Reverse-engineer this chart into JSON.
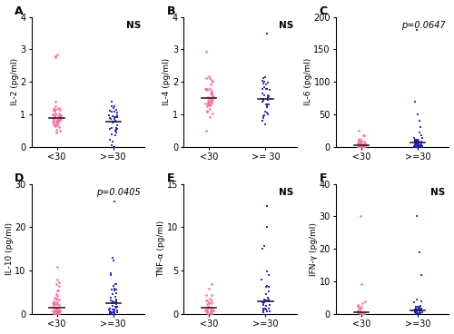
{
  "panels": [
    {
      "label": "A",
      "ylabel": "IL-2 (pg/ml)",
      "ylim": [
        0,
        4
      ],
      "yticks": [
        0,
        1,
        2,
        3,
        4
      ],
      "ptext": "NS",
      "ptext_italic": false,
      "x_labels": [
        "<30",
        ">=30"
      ]
    },
    {
      "label": "B",
      "ylabel": "IL-4 (pg/ml)",
      "ylim": [
        0,
        4
      ],
      "yticks": [
        0,
        1,
        2,
        3,
        4
      ],
      "ptext": "NS",
      "ptext_italic": false,
      "x_labels": [
        "<30",
        ">= 30"
      ]
    },
    {
      "label": "C",
      "ylabel": "IL-6 (pg/ml)",
      "ylim": [
        0,
        200
      ],
      "yticks": [
        0,
        50,
        100,
        150,
        200
      ],
      "ptext": "p=0.0647",
      "ptext_italic": true,
      "x_labels": [
        "<30",
        ">=30"
      ]
    },
    {
      "label": "D",
      "ylabel": "IL-10 (pg/ml)",
      "ylim": [
        0,
        30
      ],
      "yticks": [
        0,
        10,
        20,
        30
      ],
      "ptext": "p=0.0405",
      "ptext_italic": true,
      "x_labels": [
        "<30",
        ">=30"
      ]
    },
    {
      "label": "E",
      "ylabel": "TNF-α (pg/ml)",
      "ylim": [
        0,
        15
      ],
      "yticks": [
        0,
        5,
        10,
        15
      ],
      "ptext": "NS",
      "ptext_italic": false,
      "x_labels": [
        "<30",
        ">=30"
      ]
    },
    {
      "label": "F",
      "ylabel": "IFN-γ (pg/ml)",
      "ylim": [
        0,
        40
      ],
      "yticks": [
        0,
        10,
        20,
        30,
        40
      ],
      "ptext": "NS",
      "ptext_italic": false,
      "x_labels": [
        "<30",
        ">=30"
      ]
    }
  ],
  "pink_color": "#FF6B9D",
  "blue_color": "#1B1BCC",
  "background_color": "#ffffff",
  "dot_size": 4,
  "jitter": 0.07
}
